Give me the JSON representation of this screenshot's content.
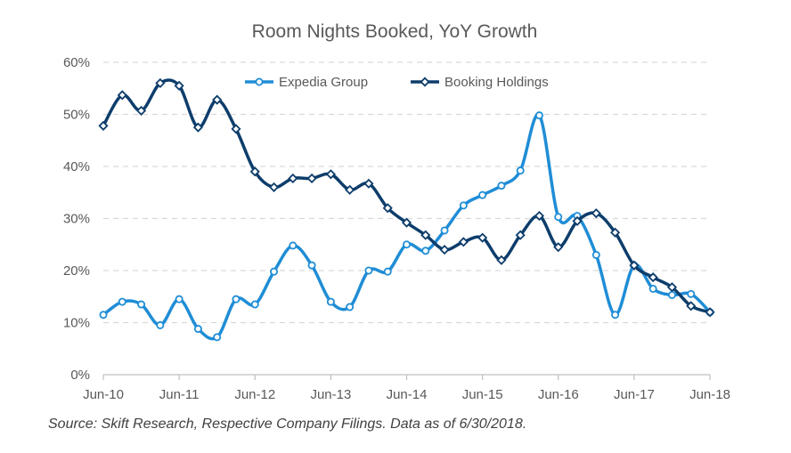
{
  "chart_data": {
    "type": "line",
    "title": "Room Nights Booked, YoY Growth",
    "xlabel": "",
    "ylabel": "",
    "ylim": [
      0,
      60
    ],
    "yticks": [
      "0%",
      "10%",
      "20%",
      "30%",
      "40%",
      "50%",
      "60%"
    ],
    "xlim": [
      0,
      32
    ],
    "xtick_labels": [
      "Jun-10",
      "Jun-11",
      "Jun-12",
      "Jun-13",
      "Jun-14",
      "Jun-15",
      "Jun-16",
      "Jun-17",
      "Jun-18"
    ],
    "grid": "horizontal dashed",
    "legend_position": "top",
    "series": [
      {
        "name": "Expedia Group",
        "color": "#1F8DD6",
        "marker": "circle",
        "x": [
          0,
          1,
          2,
          3,
          4,
          5,
          6,
          7,
          8,
          9,
          10,
          11,
          12,
          13,
          14,
          15,
          16,
          17,
          18,
          19,
          20,
          21,
          22,
          23,
          24,
          25,
          26,
          27,
          28,
          29,
          30,
          31,
          32
        ],
        "values": [
          11.5,
          14,
          13.5,
          9.5,
          14.5,
          8.8,
          7.2,
          14.5,
          13.5,
          19.8,
          24.8,
          21,
          14,
          13,
          20,
          19.8,
          25,
          23.8,
          27.7,
          32.5,
          34.5,
          36.3,
          39.2,
          49.8,
          30.3,
          30.5,
          23,
          11.5,
          21,
          16.5,
          15.3,
          15.5,
          12
        ]
      },
      {
        "name": "Booking Holdings",
        "color": "#0D3D6B",
        "marker": "diamond",
        "x": [
          0,
          1,
          2,
          3,
          4,
          5,
          6,
          7,
          8,
          9,
          10,
          11,
          12,
          13,
          14,
          15,
          16,
          17,
          18,
          19,
          20,
          21,
          22,
          23,
          24,
          25,
          26,
          27,
          28,
          29,
          30,
          31,
          32
        ],
        "values": [
          47.8,
          53.7,
          50.7,
          56,
          55.5,
          47.5,
          52.8,
          47.2,
          39,
          36,
          37.7,
          37.7,
          38.5,
          35.5,
          36.7,
          32,
          29.2,
          26.8,
          24,
          25.5,
          26.3,
          22,
          26.8,
          30.5,
          24.5,
          29.5,
          31,
          27.3,
          21,
          18.7,
          16.8,
          13.2,
          12
        ]
      }
    ],
    "source": "Source: Skift Research, Respective Company Filings. Data as of 6/30/2018."
  }
}
